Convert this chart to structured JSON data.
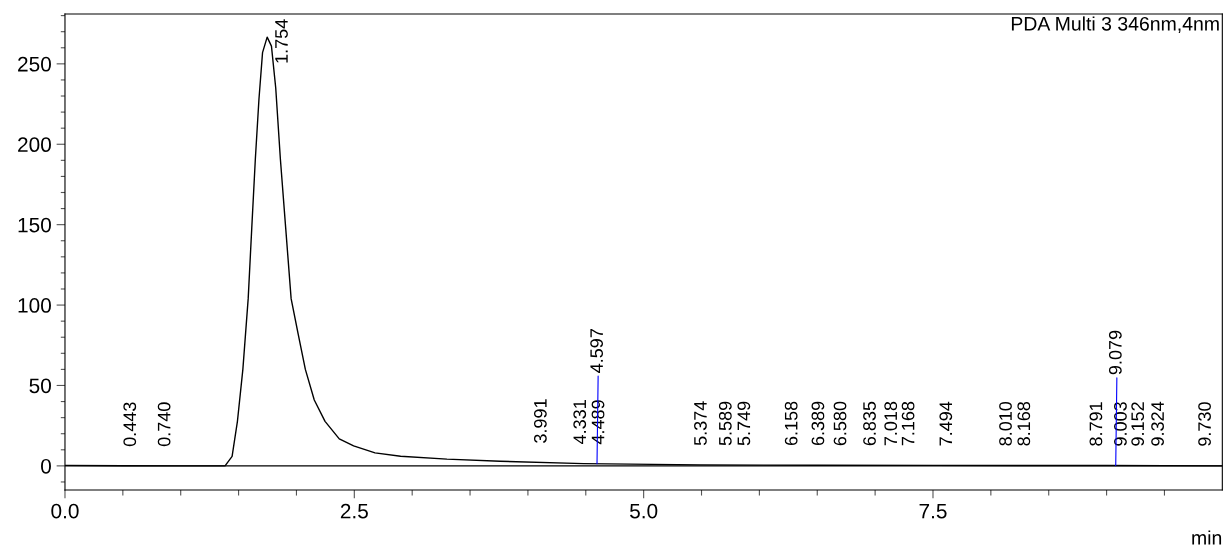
{
  "chart_data": {
    "type": "line",
    "title": "PDA Multi 3 346nm,4nm",
    "xlabel": "min",
    "series": [
      {
        "color": "#000000",
        "x": [
          0,
          0.5,
          1.0,
          1.383,
          1.444,
          1.49,
          1.537,
          1.583,
          1.614,
          1.645,
          1.676,
          1.707,
          1.747,
          1.784,
          1.821,
          1.861,
          1.907,
          1.954,
          2.015,
          2.077,
          2.154,
          2.247,
          2.37,
          2.494,
          2.679,
          2.9,
          3.3,
          3.76,
          4.48,
          5.49,
          6.5,
          7.5,
          9.0,
          10.0
        ],
        "values": [
          0.3,
          0.1,
          0,
          0,
          5.9,
          27.7,
          60,
          104,
          148,
          191,
          228,
          257,
          266.6,
          261,
          235,
          191,
          148,
          104,
          82,
          60,
          41,
          27.7,
          16.8,
          12.4,
          8.1,
          6,
          4.2,
          2.9,
          1.4,
          0.6,
          0.4,
          0.3,
          0.2,
          0
        ]
      }
    ],
    "xlim": [
      0,
      10
    ],
    "ylim": [
      -15,
      281
    ],
    "xticks": [
      {
        "value": 0.5,
        "label": null
      },
      {
        "value": 1.0,
        "label": null
      },
      {
        "value": 1.5,
        "label": null
      },
      {
        "value": 2.0,
        "label": null
      },
      {
        "value": 2.5,
        "label": "2.5"
      },
      {
        "value": 3.0,
        "label": null
      },
      {
        "value": 3.5,
        "label": null
      },
      {
        "value": 4.0,
        "label": null
      },
      {
        "value": 4.5,
        "label": null
      },
      {
        "value": 5.0,
        "label": "5.0"
      },
      {
        "value": 5.5,
        "label": null
      },
      {
        "value": 6.0,
        "label": null
      },
      {
        "value": 6.5,
        "label": null
      },
      {
        "value": 7.0,
        "label": null
      },
      {
        "value": 7.5,
        "label": "7.5"
      },
      {
        "value": 8.0,
        "label": null
      },
      {
        "value": 8.5,
        "label": null
      },
      {
        "value": 9.0,
        "label": null
      },
      {
        "value": 9.5,
        "label": null
      },
      {
        "value": 0.0,
        "label": "0.0"
      }
    ],
    "yticks": [
      {
        "value": -10,
        "label": null
      },
      0,
      {
        "value": 10,
        "label": null
      },
      {
        "value": 20,
        "label": null
      },
      {
        "value": 30,
        "label": null
      },
      {
        "value": 40,
        "label": null
      },
      50,
      {
        "value": 60,
        "label": null
      },
      {
        "value": 70,
        "label": null
      },
      {
        "value": 80,
        "label": null
      },
      {
        "value": 90,
        "label": null
      },
      100,
      {
        "value": 110,
        "label": null
      },
      {
        "value": 120,
        "label": null
      },
      {
        "value": 130,
        "label": null
      },
      {
        "value": 140,
        "label": null
      },
      150,
      {
        "value": 160,
        "label": null
      },
      {
        "value": 170,
        "label": null
      },
      {
        "value": 180,
        "label": null
      },
      {
        "value": 190,
        "label": null
      },
      200,
      {
        "value": 210,
        "label": null
      },
      {
        "value": 220,
        "label": null
      },
      {
        "value": 230,
        "label": null
      },
      {
        "value": 240,
        "label": null
      },
      250,
      {
        "value": 260,
        "label": null
      },
      {
        "value": 270,
        "label": null
      },
      {
        "value": 280,
        "label": null
      }
    ],
    "ref_lines": [
      {
        "axis": "y",
        "value": 0,
        "color": "#000000"
      }
    ],
    "grid": false,
    "legend": false,
    "marker": "none",
    "line_style": "solid",
    "annotations": [
      {
        "text": "0.443",
        "x": 0.443,
        "y": 0
      },
      {
        "text": "0.740",
        "x": 0.74,
        "y": 0
      },
      {
        "text": "1.754",
        "x": 1.754,
        "y": 266
      },
      {
        "text": "3.991",
        "x": 3.991,
        "y": 2
      },
      {
        "text": "4.331",
        "x": 4.331,
        "y": 1.5
      },
      {
        "text": "4.489",
        "x": 4.489,
        "y": 1.4
      },
      {
        "text": "4.597",
        "x": 4.597,
        "y": 1.3
      },
      {
        "text": "5.374",
        "x": 5.374,
        "y": 0.6
      },
      {
        "text": "5.589",
        "x": 5.589,
        "y": 0.5
      },
      {
        "text": "5.749",
        "x": 5.749,
        "y": 0.5
      },
      {
        "text": "6.158",
        "x": 6.158,
        "y": 0.5
      },
      {
        "text": "6.389",
        "x": 6.389,
        "y": 0.5
      },
      {
        "text": "6.580",
        "x": 6.58,
        "y": 0.4
      },
      {
        "text": "6.835",
        "x": 6.835,
        "y": 0.4
      },
      {
        "text": "7.018",
        "x": 7.018,
        "y": 0.4
      },
      {
        "text": "7.168",
        "x": 7.168,
        "y": 0.4
      },
      {
        "text": "7.494",
        "x": 7.494,
        "y": 0.3
      },
      {
        "text": "8.010",
        "x": 8.01,
        "y": 0.3
      },
      {
        "text": "8.168",
        "x": 8.168,
        "y": 0.3
      },
      {
        "text": "8.791",
        "x": 8.791,
        "y": 0.2
      },
      {
        "text": "9.003",
        "x": 9.003,
        "y": 0.2
      },
      {
        "text": "9.079",
        "x": 9.079,
        "y": 0.2
      },
      {
        "text": "9.152",
        "x": 9.152,
        "y": 0.2
      },
      {
        "text": "9.324",
        "x": 9.324,
        "y": 0.2
      },
      {
        "text": "9.730",
        "x": 9.73,
        "y": 0.1
      }
    ]
  }
}
